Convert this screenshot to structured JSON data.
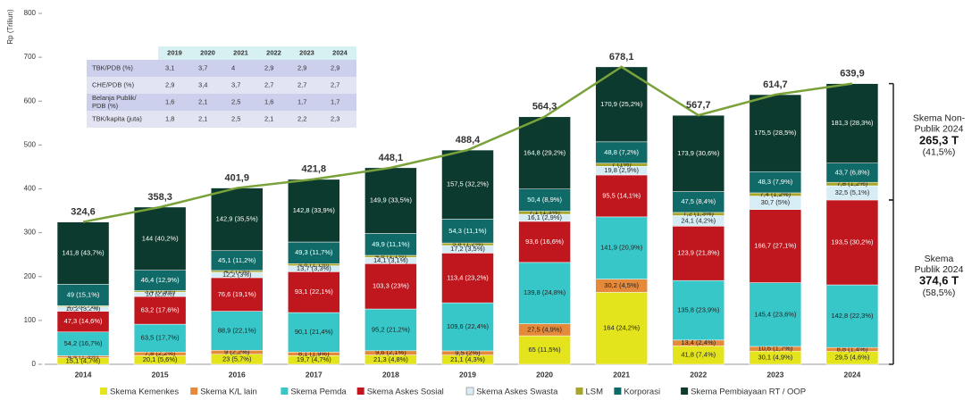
{
  "chart_data": {
    "type": "stacked_bar_line",
    "y_label": "Rp (Triliun)",
    "categories": [
      "2014",
      "2015",
      "2016",
      "2017",
      "2018",
      "2019",
      "2020",
      "2021",
      "2022",
      "2023",
      "2024"
    ],
    "ylim": [
      0,
      800
    ],
    "yticks": [
      0,
      100,
      200,
      300,
      400,
      500,
      600,
      700,
      800
    ],
    "series": [
      {
        "name": "Skema Kemenkes",
        "color": "#e3e41c",
        "values": [
          15.1,
          20.1,
          23,
          19.7,
          21.3,
          21.1,
          65,
          164,
          41.8,
          30.1,
          29.5
        ],
        "value_labels": [
          "15,1 (4,7%)",
          "20,1 (5,6%)",
          "23 (5,7%)",
          "19,7 (4,7%)",
          "21,3 (4,8%)",
          "21,1 (4,3%)",
          "65 (11,5%)",
          "164 (24,2%)",
          "41,8 (7,4%)",
          "30,1 (4,9%)",
          "29,5 (4,6%)"
        ]
      },
      {
        "name": "Skema K/L lain",
        "color": "#e5893a",
        "values": [
          4.4,
          7.8,
          9,
          8.1,
          9.6,
          9.5,
          27.5,
          30.2,
          13.4,
          10.6,
          8.8
        ],
        "value_labels": [
          "4,4 (1,3%)",
          "7,8 (2,2%)",
          "9 (2,2%)",
          "8,1 (1,9%)",
          "9,6 (2,1%)",
          "9,5 (2%)",
          "27,5 (4,9%)",
          "30,2 (4,5%)",
          "13,4 (2,4%)",
          "10,6 (1,7%)",
          "8,8 (1,4%)"
        ]
      },
      {
        "name": "Skema Pemda",
        "color": "#38c7c9",
        "values": [
          54.2,
          63.5,
          88.9,
          90.1,
          95.2,
          109.6,
          139.8,
          141.9,
          135.8,
          145.4,
          142.8
        ],
        "value_labels": [
          "54,2 (16,7%)",
          "63,5 (17,7%)",
          "88,9 (22,1%)",
          "90,1 (21,4%)",
          "95,2 (21,2%)",
          "109,6 (22,4%)",
          "139,8 (24,8%)",
          "141,9 (20,9%)",
          "135,8 (23,9%)",
          "145,4 (23,6%)",
          "142,8 (22,3%)"
        ]
      },
      {
        "name": "Skema Askes Sosial",
        "color": "#c0161d",
        "values": [
          47.3,
          63.2,
          76.6,
          93.1,
          103.3,
          113.4,
          93.6,
          95.5,
          123.9,
          166.7,
          193.5
        ],
        "value_labels": [
          "47,3 (14,6%)",
          "63,2 (17,6%)",
          "76,6 (19,1%)",
          "93,1 (22,1%)",
          "103,3 (23%)",
          "113,4 (23,2%)",
          "93,6 (16,6%)",
          "95,5 (14,1%)",
          "123,9 (21,8%)",
          "166,7 (27,1%)",
          "193,5 (30,2%)"
        ]
      },
      {
        "name": "Skema Askes Swasta",
        "color": "#d6edf6",
        "values": [
          10.2,
          10,
          12.2,
          13.7,
          14.1,
          17.2,
          16.1,
          19.8,
          24.1,
          30.7,
          32.5
        ],
        "value_labels": [
          "10,2 (3,2%)",
          "10 (2,8%)",
          "12,2 (3%)",
          "13,7 (3,3%)",
          "14,1 (3,1%)",
          "17,2 (3,5%)",
          "16,1 (2,9%)",
          "19,8 (2,9%)",
          "24,1 (4,2%)",
          "30,7 (5%)",
          "32,5 (5,1%)"
        ]
      },
      {
        "name": "LSM",
        "color": "#a8a62a",
        "values": [
          2.3,
          3.4,
          4.2,
          4.8,
          4.8,
          5.8,
          7.1,
          7,
          7.2,
          7.4,
          7.8
        ],
        "value_labels": [
          "2,3 (0,7%)",
          "3,4 (0,9%)",
          "4,2 (1%)",
          "4,8 (1,1%)",
          "4,8 (1,1%)",
          "5,8 (1,2%)",
          "7,1 (1,3%)",
          "7 (1%)",
          "7,2 (1,3%)",
          "7,4 (1,2%)",
          "7,8 (1,2%)"
        ]
      },
      {
        "name": "Korporasi",
        "color": "#106b68",
        "values": [
          49,
          46.4,
          45.1,
          49.3,
          49.9,
          54.3,
          50.4,
          48.8,
          47.5,
          48.3,
          43.7
        ],
        "value_labels": [
          "49 (15,1%)",
          "46,4 (12,9%)",
          "45,1 (11,2%)",
          "49,3 (11,7%)",
          "49,9 (11,1%)",
          "54,3 (11,1%)",
          "50,4 (8,9%)",
          "48,8 (7,2%)",
          "47,5 (8,4%)",
          "48,3 (7,9%)",
          "43,7 (6,8%)"
        ]
      },
      {
        "name": "Skema Pembiayaan RT / OOP",
        "color": "#0c3a2e",
        "values": [
          141.8,
          144,
          142.9,
          142.8,
          149.9,
          157.5,
          164.8,
          170.9,
          173.9,
          175.5,
          181.3
        ],
        "value_labels": [
          "141,8 (43,7%)",
          "144 (40,2%)",
          "142,9 (35,5%)",
          "142,8 (33,9%)",
          "149,9 (33,5%)",
          "157,5 (32,2%)",
          "164,8 (29,2%)",
          "170,9 (25,2%)",
          "173,9 (30,6%)",
          "175,5 (28,5%)",
          "181,3 (28,3%)"
        ]
      }
    ],
    "totals": {
      "color": "#7aa23a",
      "values": [
        324.6,
        358.3,
        401.9,
        421.8,
        448.1,
        488.4,
        564.3,
        678.1,
        567.7,
        614.7,
        639.9
      ],
      "value_labels": [
        "324,6",
        "358,3",
        "401,9",
        "421,8",
        "448,1",
        "488,4",
        "564,3",
        "678,1",
        "567,7",
        "614,7",
        "639,9"
      ]
    },
    "annotations": [
      {
        "lines": [
          "Skema Non-",
          "Publik 2024"
        ],
        "value": "265,3 T",
        "share": "(41,5%)"
      },
      {
        "lines": [
          "Skema",
          "Publik 2024"
        ],
        "value": "374,6 T",
        "share": "(58,5%)"
      }
    ]
  },
  "table": {
    "columns": [
      "2019",
      "2020",
      "2021",
      "2022",
      "2023",
      "2024"
    ],
    "rows": [
      {
        "label": [
          "TBK/PDB (%)"
        ],
        "cells": [
          "3,1",
          "3,7",
          "4",
          "2,9",
          "2,9",
          "2,9"
        ]
      },
      {
        "label": [
          "CHE/PDB (%)"
        ],
        "cells": [
          "2,9",
          "3,4",
          "3,7",
          "2,7",
          "2,7",
          "2,7"
        ]
      },
      {
        "label": [
          "Belanja Publik/",
          "PDB (%)"
        ],
        "cells": [
          "1,6",
          "2,1",
          "2,5",
          "1,6",
          "1,7",
          "1,7"
        ]
      },
      {
        "label": [
          "TBK/kapita (juta)"
        ],
        "cells": [
          "1,8",
          "2,1",
          "2,5",
          "2,1",
          "2,2",
          "2,3"
        ]
      }
    ]
  }
}
